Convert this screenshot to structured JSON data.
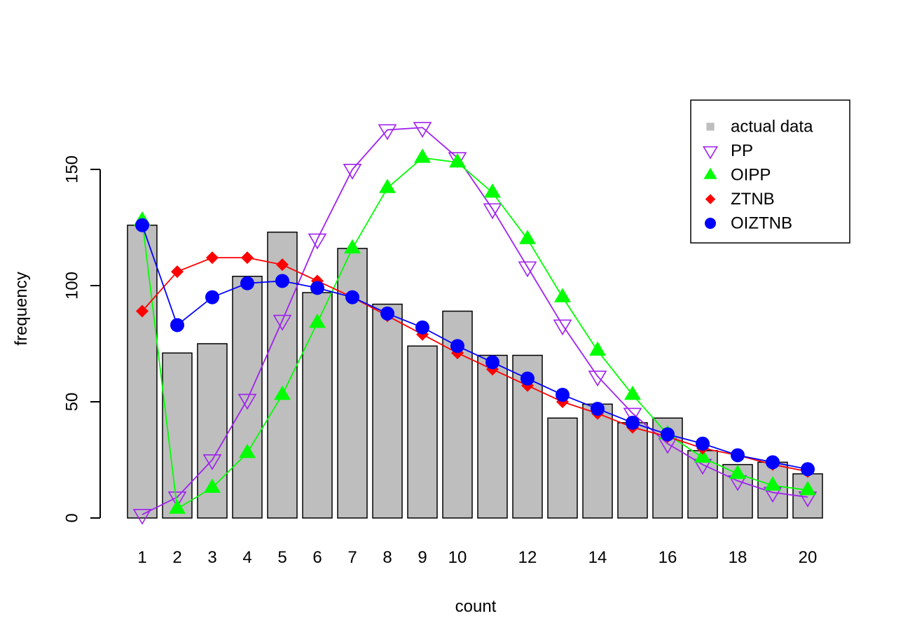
{
  "chart_data": {
    "type": "bar",
    "title": "",
    "xlabel": "count",
    "ylabel": "frequency",
    "categories": [
      "1",
      "2",
      "3",
      "4",
      "5",
      "6",
      "7",
      "8",
      "9",
      "10",
      "11",
      "12",
      "13",
      "14",
      "15",
      "16",
      "17",
      "18",
      "19",
      "20"
    ],
    "x_tick_labels": [
      "1",
      "2",
      "3",
      "4",
      "5",
      "6",
      "7",
      "8",
      "9",
      "10",
      "12",
      "14",
      "16",
      "18",
      "20"
    ],
    "y_ticks": [
      0,
      50,
      100,
      150
    ],
    "y_tick_labels": [
      "0",
      "50",
      "100",
      "150"
    ],
    "ylim": [
      0,
      150
    ],
    "grid": false,
    "legend_position": "top-right",
    "bars": {
      "name": "actual data",
      "color": "#bebebe",
      "values": [
        126,
        71,
        75,
        104,
        123,
        97,
        116,
        92,
        74,
        89,
        70,
        70,
        43,
        49,
        41,
        43,
        29,
        23,
        24,
        19
      ]
    },
    "series": [
      {
        "name": "PP",
        "color": "#a020f0",
        "marker": "open-down-triangle",
        "values": [
          1.5,
          9,
          25,
          51,
          85,
          120,
          150,
          167,
          168,
          155,
          133,
          108,
          83,
          61,
          45,
          32,
          23,
          16,
          11,
          9
        ]
      },
      {
        "name": "OIPP",
        "color": "#00ff00",
        "marker": "filled-up-triangle",
        "values": [
          128,
          4,
          13,
          28,
          53,
          84,
          116,
          142,
          155,
          153,
          140,
          120,
          95,
          72,
          53,
          36,
          26,
          19,
          14,
          12
        ]
      },
      {
        "name": "ZTNB",
        "color": "#ff0000",
        "marker": "filled-diamond",
        "values": [
          89,
          106,
          112,
          112,
          109,
          102,
          95,
          87,
          79,
          71,
          64,
          57,
          50,
          45,
          39,
          35,
          30,
          27,
          23,
          20
        ]
      },
      {
        "name": "OIZTNB",
        "color": "#0000ff",
        "marker": "filled-circle",
        "values": [
          126,
          83,
          95,
          101,
          102,
          99,
          95,
          88,
          82,
          74,
          67,
          60,
          53,
          47,
          41,
          36,
          32,
          27,
          24,
          21
        ]
      }
    ],
    "legend": [
      {
        "label": "actual data",
        "marker": "filled-square",
        "color": "#bebebe"
      },
      {
        "label": "PP",
        "marker": "open-down-triangle",
        "color": "#a020f0"
      },
      {
        "label": "OIPP",
        "marker": "filled-up-triangle",
        "color": "#00ff00"
      },
      {
        "label": "ZTNB",
        "marker": "filled-diamond",
        "color": "#ff0000"
      },
      {
        "label": "OIZTNB",
        "marker": "filled-circle",
        "color": "#0000ff"
      }
    ]
  }
}
